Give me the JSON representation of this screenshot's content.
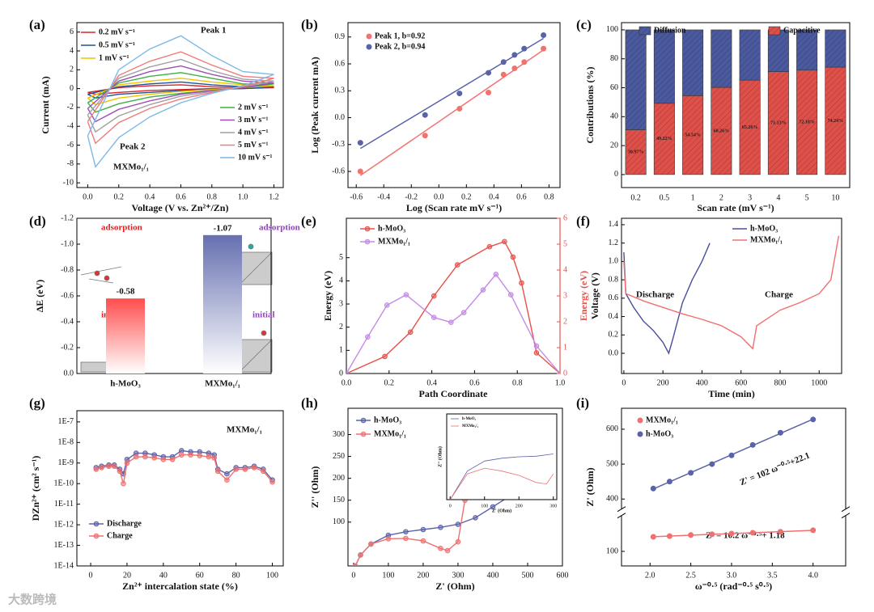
{
  "watermark": "大数跨境",
  "chart_data": [
    {
      "type": "line",
      "label": "(a)",
      "xlabel": "Voltage (V vs. Zn²⁺/Zn)",
      "ylabel": "Current (mA)",
      "xlim": [
        -0.07,
        1.26
      ],
      "xticks": [
        {
          "value": 0,
          "label": "0.0"
        },
        0.2,
        0.4,
        0.6,
        0.8,
        {
          "value": 1,
          "label": "1.0"
        },
        1.2
      ],
      "ylim": [
        -10.5,
        7
      ],
      "yticks": [
        -10,
        -8,
        -6,
        -4,
        -2,
        0,
        2,
        4,
        6
      ],
      "x": [
        0,
        0.2,
        0.4,
        0.6,
        0.8,
        1.0,
        1.2,
        1.0,
        0.8,
        0.6,
        0.4,
        0.2,
        0.05,
        0
      ],
      "series": [
        {
          "name": "0.2 mV s⁻¹",
          "color": "#d9262b",
          "values": [
            -0.4,
            0.1,
            0.3,
            0.4,
            0.2,
            0.1,
            0.1,
            0,
            0,
            -0.1,
            -0.2,
            -0.4,
            -0.6,
            -0.4
          ]
        },
        {
          "name": "0.5 mV s⁻¹",
          "color": "#23509a",
          "values": [
            -0.6,
            0.2,
            0.5,
            0.7,
            0.4,
            0.2,
            0.2,
            0,
            -0.1,
            -0.2,
            -0.4,
            -0.6,
            -1.0,
            -0.6
          ]
        },
        {
          "name": "1 mV s⁻¹",
          "color": "#f2c200",
          "values": [
            -1.0,
            0.4,
            0.8,
            1.1,
            0.7,
            0.4,
            0.3,
            0.1,
            -0.1,
            -0.3,
            -0.6,
            -1.0,
            -1.7,
            -1.0
          ]
        },
        {
          "name": "2 mV s⁻¹",
          "color": "#3cb043",
          "values": [
            -1.5,
            0.6,
            1.3,
            1.7,
            1.1,
            0.5,
            0.5,
            0.1,
            -0.2,
            -0.5,
            -0.9,
            -1.6,
            -2.5,
            -1.5
          ]
        },
        {
          "name": "3 mV s⁻¹",
          "color": "#9b4fb8",
          "values": [
            -2.1,
            0.8,
            1.8,
            2.4,
            1.5,
            0.8,
            0.6,
            0.1,
            -0.2,
            -0.6,
            -1.3,
            -2.2,
            -3.5,
            -2.1
          ]
        },
        {
          "name": "4 mV s⁻¹",
          "color": "#a0a0a0",
          "values": [
            -2.8,
            1.1,
            2.3,
            3.1,
            1.9,
            1.0,
            0.8,
            0.2,
            -0.3,
            -0.8,
            -1.7,
            -2.9,
            -4.6,
            -2.8
          ]
        },
        {
          "name": "5 mV s⁻¹",
          "color": "#ef7b7b",
          "values": [
            -3.5,
            1.4,
            2.9,
            3.9,
            2.5,
            1.3,
            1.1,
            0.2,
            -0.4,
            -1.1,
            -2.1,
            -3.6,
            -5.8,
            -3.5
          ]
        },
        {
          "name": "10 mV s⁻¹",
          "color": "#7db9e6",
          "values": [
            -5,
            2,
            4.2,
            5.6,
            3.5,
            1.8,
            1.5,
            0.3,
            -0.5,
            -1.5,
            -3,
            -5.2,
            -8.3,
            -5
          ]
        }
      ],
      "annotations": [
        {
          "text": "Peak 1"
        },
        {
          "text": "Peak 2"
        },
        {
          "text": "MXMo₁/₁"
        }
      ]
    },
    {
      "type": "scatter",
      "label": "(b)",
      "xlabel": "Log (Scan rate mV s⁻¹)",
      "ylabel": "Log (Peak current mA)",
      "fit": true,
      "xlim": [
        -0.66,
        0.88
      ],
      "xticks": [
        -0.6,
        -0.4,
        -0.2,
        {
          "value": 0,
          "label": "0.0"
        },
        0.2,
        0.4,
        0.6,
        0.8
      ],
      "ylim": [
        -0.78,
        1.06
      ],
      "yticks": [
        -0.6,
        -0.3,
        {
          "value": 0,
          "label": "0.0"
        },
        0.3,
        0.6,
        0.9
      ],
      "series": [
        {
          "name": "Peak 1, b=0.92",
          "color": "#f4726e",
          "x": [
            -0.57,
            -0.1,
            0.15,
            0.36,
            0.47,
            0.55,
            0.62,
            0.76
          ],
          "values": [
            -0.6,
            -0.2,
            0.1,
            0.28,
            0.48,
            0.55,
            0.62,
            0.77
          ]
        },
        {
          "name": "Peak 2, b=0.94",
          "color": "#5b63a8",
          "x": [
            -0.57,
            -0.1,
            0.15,
            0.36,
            0.47,
            0.55,
            0.62,
            0.76
          ],
          "values": [
            -0.28,
            0.03,
            0.27,
            0.5,
            0.62,
            0.7,
            0.77,
            0.92
          ]
        }
      ]
    },
    {
      "type": "bar",
      "label": "(c)",
      "xlabel": "Scan rate (mV s⁻¹)",
      "ylabel": "Contributions (%)",
      "stacked": true,
      "categories": [
        "0.2",
        "0.5",
        "1",
        "2",
        "3",
        "4",
        "5",
        "10"
      ],
      "ylim": [
        -9,
        105
      ],
      "yticks": [
        0,
        20,
        40,
        60,
        80,
        100
      ],
      "series": [
        {
          "name": "Capacitive",
          "color": "#e0504a",
          "values": [
            30.97,
            49.22,
            54.54,
            60.26,
            65.26,
            71.13,
            72.18,
            74.24
          ],
          "value_labels": [
            "30.97%",
            "49.22%",
            "54.54%",
            "60.26%",
            "65.26%",
            "71.13%",
            "72.18%",
            "74.24%"
          ]
        },
        {
          "name": "Diffusion",
          "color": "#4b5a9e",
          "values": [
            69.03,
            50.78,
            45.46,
            39.74,
            34.74,
            28.87,
            27.82,
            25.76
          ]
        }
      ]
    },
    {
      "type": "bar",
      "label": "(d)",
      "ylabel": "ΔE (eV)",
      "categories": [
        "h-MoO₃",
        "MXMo₁/₁"
      ],
      "values": [
        -0.58,
        -1.07
      ],
      "colors": [
        "#ff4d4d",
        "#6670b0"
      ],
      "ylim": [
        0,
        -1.2
      ],
      "yticks": [
        {
          "value": 0,
          "label": "0.0"
        },
        -0.2,
        -0.4,
        -0.6,
        -0.8,
        {
          "value": -1,
          "label": "-1.0"
        },
        -1.2
      ],
      "annotations": [
        {
          "text": "adsorption",
          "color": "#e02020"
        },
        {
          "text": "initial",
          "color": "#e02020"
        },
        {
          "text": "adsorption",
          "color": "#9040c0"
        },
        {
          "text": "initial",
          "color": "#9040c0"
        }
      ]
    },
    {
      "type": "line",
      "label": "(e)",
      "xlabel": "Path Coordinate",
      "ylabel": "Energy (eV)",
      "y2label": "Energy (eV)",
      "markers": true,
      "xlim": [
        0,
        1
      ],
      "xticks": [
        {
          "value": 0,
          "label": "0.0"
        },
        0.2,
        0.4,
        0.6,
        0.8,
        {
          "value": 1,
          "label": "1.0"
        }
      ],
      "ylim": [
        0,
        6.7
      ],
      "yticks": [
        0,
        1,
        2,
        3,
        4,
        5
      ],
      "y2lim": [
        0,
        6
      ],
      "y2ticks": [
        0,
        1,
        2,
        3,
        4,
        5,
        6
      ],
      "y2color": "#e8504a",
      "series": [
        {
          "name": "h-MoO₃",
          "color": "#e8504a",
          "axis": "y2",
          "x": [
            0,
            0.18,
            0.3,
            0.41,
            0.52,
            0.67,
            0.74,
            0.78,
            0.82,
            0.89,
            1.0
          ],
          "values": [
            0,
            0.66,
            1.6,
            3.0,
            4.2,
            4.9,
            5.1,
            4.5,
            3.5,
            0.8,
            0
          ]
        },
        {
          "name": "MXMo₁/₁",
          "color": "#c58ae6",
          "x": [
            0,
            0.1,
            0.19,
            0.28,
            0.41,
            0.49,
            0.55,
            0.64,
            0.7,
            0.77,
            0.89,
            1.0
          ],
          "values": [
            0,
            1.58,
            2.95,
            3.4,
            2.42,
            2.21,
            2.63,
            3.61,
            4.28,
            3.4,
            1.19,
            0
          ]
        }
      ]
    },
    {
      "type": "line",
      "label": "(f)",
      "xlabel": "Time (min)",
      "ylabel": "Voltage (V)",
      "xlim": [
        -12,
        1115
      ],
      "xticks": [
        0,
        200,
        400,
        600,
        800,
        1000
      ],
      "ylim": [
        -0.22,
        1.47
      ],
      "yticks": [
        {
          "value": 0,
          "label": "0.0"
        },
        0.2,
        0.4,
        0.6,
        0.8,
        {
          "value": 1,
          "label": "1.0"
        },
        1.2,
        1.4
      ],
      "series": [
        {
          "name": "h-MoO₃",
          "color": "#4a4f9a",
          "x": [
            0,
            10,
            50,
            100,
            150,
            200,
            230,
            250,
            300,
            350,
            400,
            440
          ],
          "values": [
            1.1,
            0.65,
            0.5,
            0.35,
            0.25,
            0.12,
            0.0,
            0.15,
            0.55,
            0.8,
            1.0,
            1.2
          ]
        },
        {
          "name": "MXMo₁/₁",
          "color": "#f07070",
          "x": [
            0,
            10,
            100,
            200,
            300,
            400,
            500,
            600,
            660,
            680,
            800,
            900,
            1000,
            1060,
            1100
          ],
          "values": [
            1.0,
            0.65,
            0.57,
            0.5,
            0.43,
            0.37,
            0.3,
            0.18,
            0.05,
            0.3,
            0.47,
            0.55,
            0.65,
            0.8,
            1.28
          ]
        }
      ],
      "annotations": [
        {
          "text": "Discharge"
        },
        {
          "text": "Charge"
        }
      ]
    },
    {
      "type": "line",
      "label": "(g)",
      "xlabel": "Zn²⁺ intercalation state (%)",
      "ylabel": "DZn²⁺ (cm² s⁻¹)",
      "markers": true,
      "ylog": true,
      "xlim": [
        -7.6,
        106
      ],
      "xticks": [
        0,
        20,
        40,
        60,
        80,
        100
      ],
      "ylim": [
        1e-14,
        3.5e-07
      ],
      "yticks": [
        {
          "value": 1e-14,
          "label": "1E-14"
        },
        {
          "value": 1e-13,
          "label": "1E-13"
        },
        {
          "value": 1e-12,
          "label": "1E-12"
        },
        {
          "value": 1e-11,
          "label": "1E-11"
        },
        {
          "value": 1e-10,
          "label": "1E-10"
        },
        {
          "value": 1e-09,
          "label": "1E-9"
        },
        {
          "value": 1e-08,
          "label": "1E-8"
        },
        {
          "value": 1e-07,
          "label": "1E-7"
        }
      ],
      "x": [
        3,
        6,
        10,
        13,
        16,
        18,
        20,
        25,
        30,
        35,
        40,
        45,
        50,
        55,
        60,
        65,
        68,
        70,
        75,
        80,
        85,
        90,
        95,
        100
      ],
      "series": [
        {
          "name": "Discharge",
          "color": "#5b63a8",
          "values": [
            6e-10,
            7e-10,
            8e-10,
            8e-10,
            5e-10,
            3e-10,
            1.5e-09,
            3e-09,
            3e-09,
            2.5e-09,
            2e-09,
            2e-09,
            4e-09,
            3.5e-09,
            3.5e-09,
            3e-09,
            2.5e-09,
            5e-10,
            3e-10,
            6e-10,
            6e-10,
            7e-10,
            5e-10,
            1.5e-10
          ]
        },
        {
          "name": "Charge",
          "color": "#f07070",
          "values": [
            5e-10,
            6e-10,
            7e-10,
            7e-10,
            4e-10,
            1e-10,
            1e-09,
            2e-09,
            2e-09,
            1.8e-09,
            1.5e-09,
            1.5e-09,
            2.5e-09,
            2.5e-09,
            2.3e-09,
            2e-09,
            1.8e-09,
            4e-10,
            1.5e-10,
            5e-10,
            5e-10,
            6e-10,
            4e-10,
            1.2e-10
          ]
        }
      ],
      "annotations": [
        {
          "text": "MXMo₁/₁"
        }
      ]
    },
    {
      "type": "line",
      "label": "(h)",
      "xlabel": "Z' (Ohm)",
      "ylabel": "Z'' (Ohm)",
      "markers": true,
      "xlim": [
        -16,
        600
      ],
      "xticks": [
        0,
        100,
        200,
        300,
        400,
        500,
        600
      ],
      "ylim": [
        0,
        360
      ],
      "yticks": [
        100,
        150,
        200,
        250,
        300
      ],
      "series": [
        {
          "name": "h-MoO₃",
          "color": "#5b63a8",
          "x": [
            5,
            20,
            50,
            100,
            150,
            200,
            250,
            300,
            350,
            400,
            450,
            500,
            550,
            570
          ],
          "values": [
            0,
            25,
            50,
            70,
            78,
            83,
            88,
            95,
            110,
            135,
            160,
            185,
            220,
            235
          ]
        },
        {
          "name": "MXMo₁/₁",
          "color": "#f07070",
          "x": [
            5,
            20,
            50,
            100,
            150,
            200,
            250,
            270,
            300,
            320
          ],
          "values": [
            0,
            25,
            50,
            62,
            63,
            57,
            40,
            35,
            55,
            150
          ]
        }
      ]
    },
    {
      "type": "line",
      "xlabel": "Z' (Ohm)",
      "ylabel": "Z'' (Ohm)",
      "xlim": [
        -10,
        310
      ],
      "xticks": [
        0,
        100,
        200,
        300
      ],
      "ylim": [
        0,
        300
      ],
      "series": [
        {
          "name": "h-MoO₃",
          "color": "#5b63a8",
          "x": [
            0,
            50,
            100,
            150,
            200,
            250,
            300
          ],
          "values": [
            0,
            100,
            135,
            145,
            150,
            152,
            160
          ]
        },
        {
          "name": "MXMo₁/₁",
          "color": "#f07070",
          "x": [
            0,
            50,
            100,
            150,
            200,
            250,
            280,
            300
          ],
          "values": [
            0,
            90,
            110,
            100,
            85,
            60,
            55,
            90
          ]
        }
      ]
    },
    {
      "type": "scatter",
      "label": "(i)",
      "xlabel": "ω⁻⁰·⁵ (rad⁻⁰·⁵ s⁰·⁵)",
      "ylabel": "Z' (Ohm)",
      "fit": true,
      "xlim": [
        1.65,
        4.4
      ],
      "xticks": [
        {
          "value": 2,
          "label": "2.0"
        },
        2.5,
        {
          "value": 3,
          "label": "3.0"
        },
        3.5,
        {
          "value": 4,
          "label": "4.0"
        }
      ],
      "ylim": [
        60,
        660
      ],
      "ybreak": [
        190,
        380
      ],
      "yticks": [
        100,
        400,
        500,
        600
      ],
      "x": [
        2.04,
        2.24,
        2.5,
        2.76,
        3.0,
        3.26,
        3.6,
        4.0
      ],
      "series": [
        {
          "name": "MXMo₁/₁",
          "color": "#f07070",
          "values": [
            140,
            142,
            145,
            147,
            149,
            151,
            154,
            158
          ]
        },
        {
          "name": "h-MoO₃",
          "color": "#5b63a8",
          "values": [
            430,
            450,
            475,
            500,
            525,
            555,
            590,
            628
          ]
        }
      ],
      "annotations": [
        {
          "text": "Z' = 102 ω⁻⁰·⁵+22.1"
        },
        {
          "text": "Z' = 10.2 ω⁻⁰·⁵+ 1.18"
        }
      ]
    }
  ]
}
